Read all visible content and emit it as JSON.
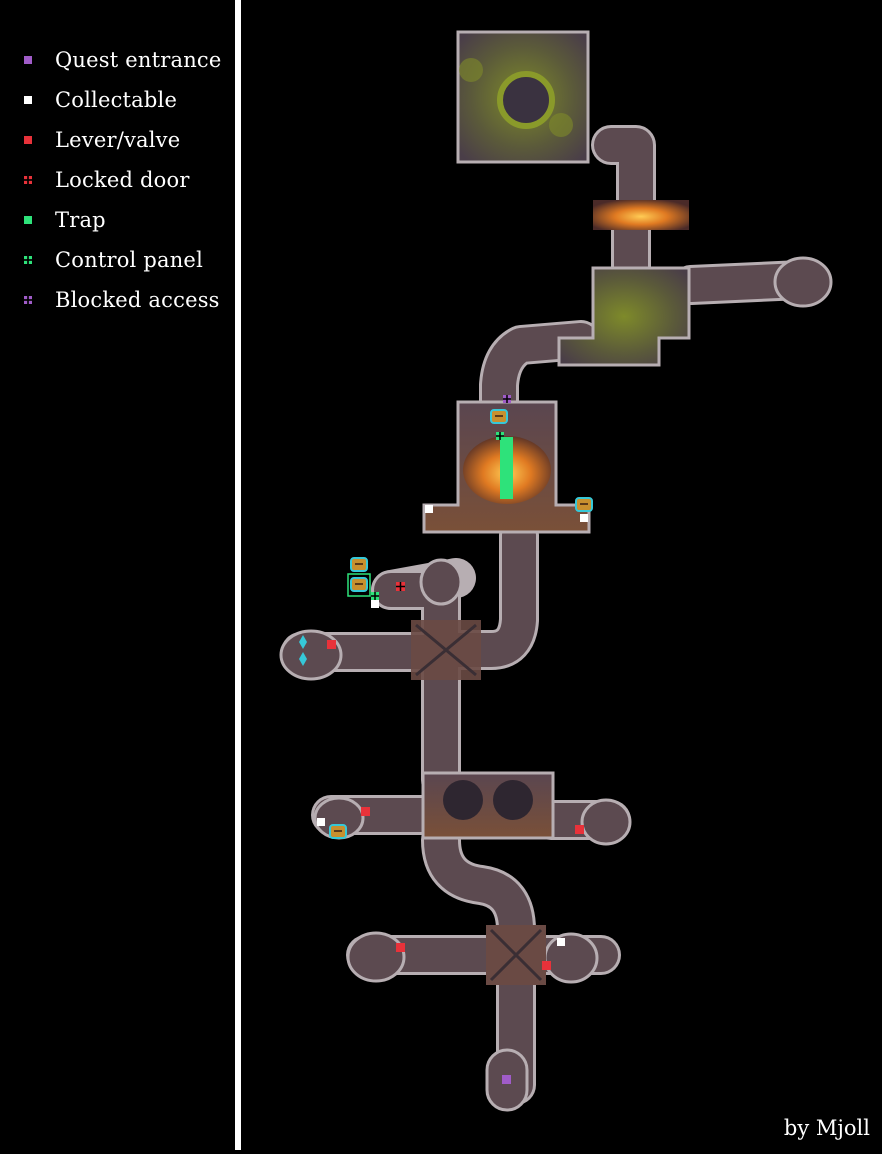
{
  "legend": {
    "items": [
      {
        "label": "Quest entrance",
        "color": "#a05cc8",
        "style": "solid"
      },
      {
        "label": "Collectable",
        "color": "#ffffff",
        "style": "solid"
      },
      {
        "label": "Lever/valve",
        "color": "#e8323a",
        "style": "solid"
      },
      {
        "label": "Locked door",
        "color": "#e8323a",
        "style": "grid"
      },
      {
        "label": "Trap",
        "color": "#2ee27a",
        "style": "solid"
      },
      {
        "label": "Control panel",
        "color": "#2ee27a",
        "style": "grid"
      },
      {
        "label": "Blocked access",
        "color": "#a05cc8",
        "style": "grid"
      }
    ]
  },
  "credit": "by Mjoll",
  "colors": {
    "background": "#000000",
    "divider": "#ffffff",
    "floor": "#5c4a50",
    "floor_outline": "#b7aeb2",
    "lava": "#e07a22",
    "moss": "#8a9a2a",
    "chest": "#c8902e",
    "chest_outline": "#36c8d8"
  },
  "icons": [
    "treasure-chest-icon",
    "crystal-statue-icon"
  ]
}
